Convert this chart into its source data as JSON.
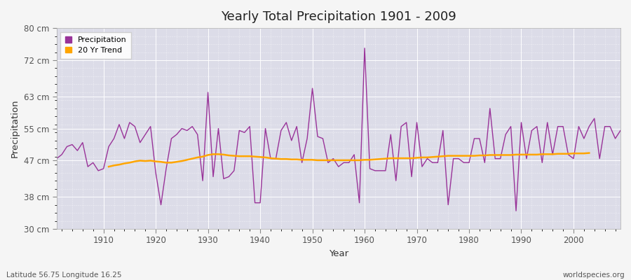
{
  "title": "Yearly Total Precipitation 1901 - 2009",
  "xlabel": "Year",
  "ylabel": "Precipitation",
  "subtitle": "Latitude 56.75 Longitude 16.25",
  "watermark": "worldspecies.org",
  "ylim": [
    30,
    80
  ],
  "yticks": [
    30,
    38,
    47,
    55,
    63,
    72,
    80
  ],
  "ytick_labels": [
    "30 cm",
    "38 cm",
    "47 cm",
    "55 cm",
    "63 cm",
    "72 cm",
    "80 cm"
  ],
  "xlim": [
    1901,
    2009
  ],
  "precipitation_color": "#993399",
  "trend_color": "#FFA500",
  "background_color": "#DCDCE8",
  "grid_color": "#FFFFFF",
  "legend_bg": "#FFFFFF",
  "text_color": "#555555",
  "legend_label_precip": "Precipitation",
  "legend_label_trend": "20 Yr Trend",
  "years": [
    1901,
    1902,
    1903,
    1904,
    1905,
    1906,
    1907,
    1908,
    1909,
    1910,
    1911,
    1912,
    1913,
    1914,
    1915,
    1916,
    1917,
    1918,
    1919,
    1920,
    1921,
    1922,
    1923,
    1924,
    1925,
    1926,
    1927,
    1928,
    1929,
    1930,
    1931,
    1932,
    1933,
    1934,
    1935,
    1936,
    1937,
    1938,
    1939,
    1940,
    1941,
    1942,
    1943,
    1944,
    1945,
    1946,
    1947,
    1948,
    1949,
    1950,
    1951,
    1952,
    1953,
    1954,
    1955,
    1956,
    1957,
    1958,
    1959,
    1960,
    1961,
    1962,
    1963,
    1964,
    1965,
    1966,
    1967,
    1968,
    1969,
    1970,
    1971,
    1972,
    1973,
    1974,
    1975,
    1976,
    1977,
    1978,
    1979,
    1980,
    1981,
    1982,
    1983,
    1984,
    1985,
    1986,
    1987,
    1988,
    1989,
    1990,
    1991,
    1992,
    1993,
    1994,
    1995,
    1996,
    1997,
    1998,
    1999,
    2000,
    2001,
    2002,
    2003,
    2004,
    2005,
    2006,
    2007,
    2008,
    2009
  ],
  "precip": [
    47.5,
    48.5,
    50.5,
    51.0,
    49.5,
    51.5,
    45.5,
    46.5,
    44.5,
    45.0,
    50.5,
    52.5,
    56.0,
    52.5,
    56.5,
    55.5,
    51.5,
    53.5,
    55.5,
    44.0,
    36.0,
    45.0,
    52.5,
    53.5,
    55.0,
    54.5,
    55.5,
    53.5,
    42.0,
    64.0,
    43.0,
    55.0,
    42.5,
    43.0,
    44.5,
    54.5,
    54.0,
    55.5,
    36.5,
    36.5,
    55.0,
    47.5,
    47.5,
    54.5,
    56.5,
    52.0,
    55.5,
    46.5,
    52.5,
    65.0,
    53.0,
    52.5,
    46.5,
    47.5,
    45.5,
    46.5,
    46.5,
    48.5,
    36.5,
    75.0,
    45.0,
    44.5,
    44.5,
    44.5,
    53.5,
    42.0,
    55.5,
    56.5,
    43.0,
    56.5,
    45.5,
    47.5,
    46.5,
    46.5,
    54.5,
    36.0,
    47.5,
    47.5,
    46.5,
    46.5,
    52.5,
    52.5,
    46.5,
    60.0,
    47.5,
    47.5,
    53.5,
    55.5,
    34.5,
    56.5,
    47.5,
    54.5,
    55.5,
    46.5,
    56.5,
    48.5,
    55.5,
    55.5,
    48.5,
    47.5,
    55.5,
    52.5,
    55.5,
    57.5,
    47.5,
    55.5,
    55.5,
    52.5,
    54.5
  ],
  "trend": [
    null,
    null,
    null,
    null,
    null,
    null,
    null,
    null,
    null,
    null,
    45.5,
    45.8,
    46.0,
    46.3,
    46.5,
    46.8,
    47.0,
    46.9,
    47.0,
    46.8,
    46.7,
    46.5,
    46.5,
    46.7,
    46.9,
    47.2,
    47.5,
    47.8,
    48.0,
    48.4,
    48.6,
    48.6,
    48.5,
    48.3,
    48.2,
    48.1,
    48.1,
    48.1,
    48.0,
    47.9,
    47.8,
    47.6,
    47.5,
    47.4,
    47.4,
    47.3,
    47.3,
    47.2,
    47.2,
    47.2,
    47.1,
    47.1,
    47.1,
    47.1,
    47.1,
    47.1,
    47.1,
    47.1,
    47.1,
    47.2,
    47.2,
    47.3,
    47.4,
    47.5,
    47.6,
    47.6,
    47.6,
    47.6,
    47.6,
    47.7,
    47.8,
    47.8,
    47.9,
    48.0,
    48.1,
    48.2,
    48.2,
    48.2,
    48.2,
    48.2,
    48.2,
    48.3,
    48.3,
    48.4,
    48.4,
    48.4,
    48.4,
    48.4,
    48.5,
    48.5,
    48.5,
    48.5,
    48.5,
    48.6,
    48.6,
    48.6,
    48.7,
    48.7,
    48.7,
    48.8,
    48.8,
    48.8,
    48.9,
    null,
    null,
    null,
    null,
    null,
    null,
    null,
    null,
    null,
    null
  ]
}
